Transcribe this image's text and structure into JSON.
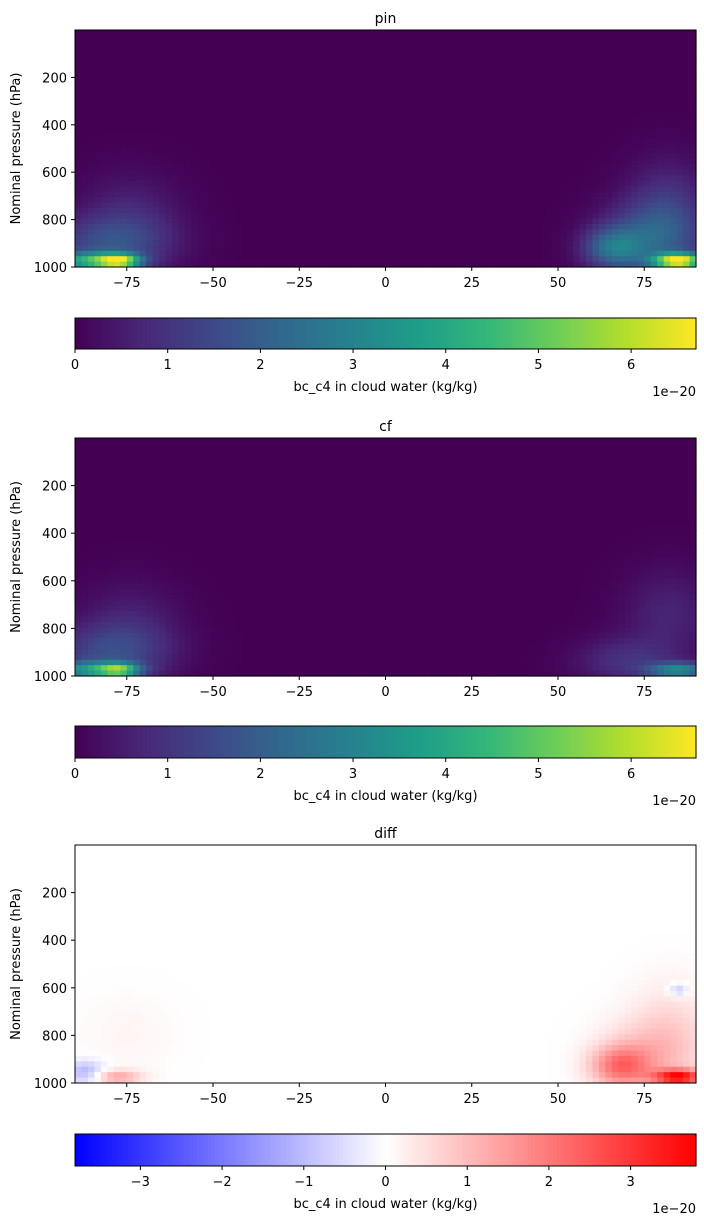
{
  "chart_data": [
    {
      "type": "heatmap",
      "title": "pin",
      "xlabel": "",
      "ylabel": "Nominal pressure (hPa)",
      "xticks": [
        "−75",
        "−50",
        "−25",
        "0",
        "25",
        "50",
        "75"
      ],
      "yticks": [
        "200",
        "400",
        "600",
        "800",
        "1000"
      ],
      "xlim": [
        -90,
        90
      ],
      "ylim": [
        1000,
        0
      ],
      "colormap": "viridis",
      "grid": false,
      "colorbar": {
        "label": "bc_c4 in cloud water (kg/kg)",
        "ticks": [
          "0",
          "1",
          "2",
          "3",
          "4",
          "5",
          "6"
        ],
        "range": [
          0,
          6.7
        ],
        "offset": "1e−20"
      },
      "blobs": [
        {
          "lat": -85,
          "p": 975,
          "v": 0.55,
          "sx": 8,
          "sy": 25
        },
        {
          "lat": -77,
          "p": 975,
          "v": 0.62,
          "sx": 4,
          "sy": 20
        },
        {
          "lat": -80,
          "p": 900,
          "v": 0.22,
          "sx": 12,
          "sy": 80
        },
        {
          "lat": -74,
          "p": 780,
          "v": 0.1,
          "sx": 10,
          "sy": 120
        },
        {
          "lat": 66,
          "p": 920,
          "v": 0.32,
          "sx": 6,
          "sy": 60
        },
        {
          "lat": 78,
          "p": 880,
          "v": 0.28,
          "sx": 10,
          "sy": 110
        },
        {
          "lat": 85,
          "p": 975,
          "v": 0.95,
          "sx": 5,
          "sy": 22
        },
        {
          "lat": 82,
          "p": 720,
          "v": 0.12,
          "sx": 8,
          "sy": 130
        }
      ]
    },
    {
      "type": "heatmap",
      "title": "cf",
      "xlabel": "",
      "ylabel": "Nominal pressure (hPa)",
      "xticks": [
        "−75",
        "−50",
        "−25",
        "0",
        "25",
        "50",
        "75"
      ],
      "yticks": [
        "200",
        "400",
        "600",
        "800",
        "1000"
      ],
      "xlim": [
        -90,
        90
      ],
      "ylim": [
        1000,
        0
      ],
      "colormap": "viridis",
      "grid": false,
      "colorbar": {
        "label": "bc_c4 in cloud water (kg/kg)",
        "ticks": [
          "0",
          "1",
          "2",
          "3",
          "4",
          "5",
          "6"
        ],
        "range": [
          0,
          6.7
        ],
        "offset": "1e−20"
      },
      "blobs": [
        {
          "lat": -85,
          "p": 975,
          "v": 0.45,
          "sx": 8,
          "sy": 25
        },
        {
          "lat": -77,
          "p": 975,
          "v": 0.48,
          "sx": 4,
          "sy": 20
        },
        {
          "lat": -80,
          "p": 900,
          "v": 0.2,
          "sx": 12,
          "sy": 80
        },
        {
          "lat": -74,
          "p": 780,
          "v": 0.09,
          "sx": 10,
          "sy": 120
        },
        {
          "lat": 70,
          "p": 940,
          "v": 0.14,
          "sx": 10,
          "sy": 70
        },
        {
          "lat": 85,
          "p": 975,
          "v": 0.45,
          "sx": 6,
          "sy": 22
        },
        {
          "lat": 82,
          "p": 740,
          "v": 0.1,
          "sx": 9,
          "sy": 130
        }
      ]
    },
    {
      "type": "heatmap",
      "title": "diff",
      "xlabel": "",
      "ylabel": "Nominal pressure (hPa)",
      "xticks": [
        "−75",
        "−50",
        "−25",
        "0",
        "25",
        "50",
        "75"
      ],
      "yticks": [
        "200",
        "400",
        "600",
        "800",
        "1000"
      ],
      "xlim": [
        -90,
        90
      ],
      "ylim": [
        1000,
        0
      ],
      "colormap": "bwr",
      "grid": false,
      "colorbar": {
        "label": "bc_c4 in cloud water (kg/kg)",
        "ticks": [
          "−3",
          "−2",
          "−1",
          "0",
          "1",
          "2",
          "3"
        ],
        "range": [
          -3.8,
          3.8
        ],
        "offset": "1e−20"
      },
      "blobs": [
        {
          "lat": -87,
          "p": 955,
          "v": -0.3,
          "sx": 4,
          "sy": 35
        },
        {
          "lat": -78,
          "p": 975,
          "v": 0.35,
          "sx": 5,
          "sy": 20
        },
        {
          "lat": -75,
          "p": 800,
          "v": 0.04,
          "sx": 10,
          "sy": 120
        },
        {
          "lat": 68,
          "p": 930,
          "v": 0.5,
          "sx": 6,
          "sy": 60
        },
        {
          "lat": 78,
          "p": 880,
          "v": 0.25,
          "sx": 10,
          "sy": 110
        },
        {
          "lat": 85,
          "p": 975,
          "v": 0.9,
          "sx": 5,
          "sy": 22
        },
        {
          "lat": 83,
          "p": 720,
          "v": 0.1,
          "sx": 8,
          "sy": 130
        },
        {
          "lat": 85,
          "p": 610,
          "v": -0.25,
          "sx": 2,
          "sy": 20
        }
      ]
    }
  ]
}
